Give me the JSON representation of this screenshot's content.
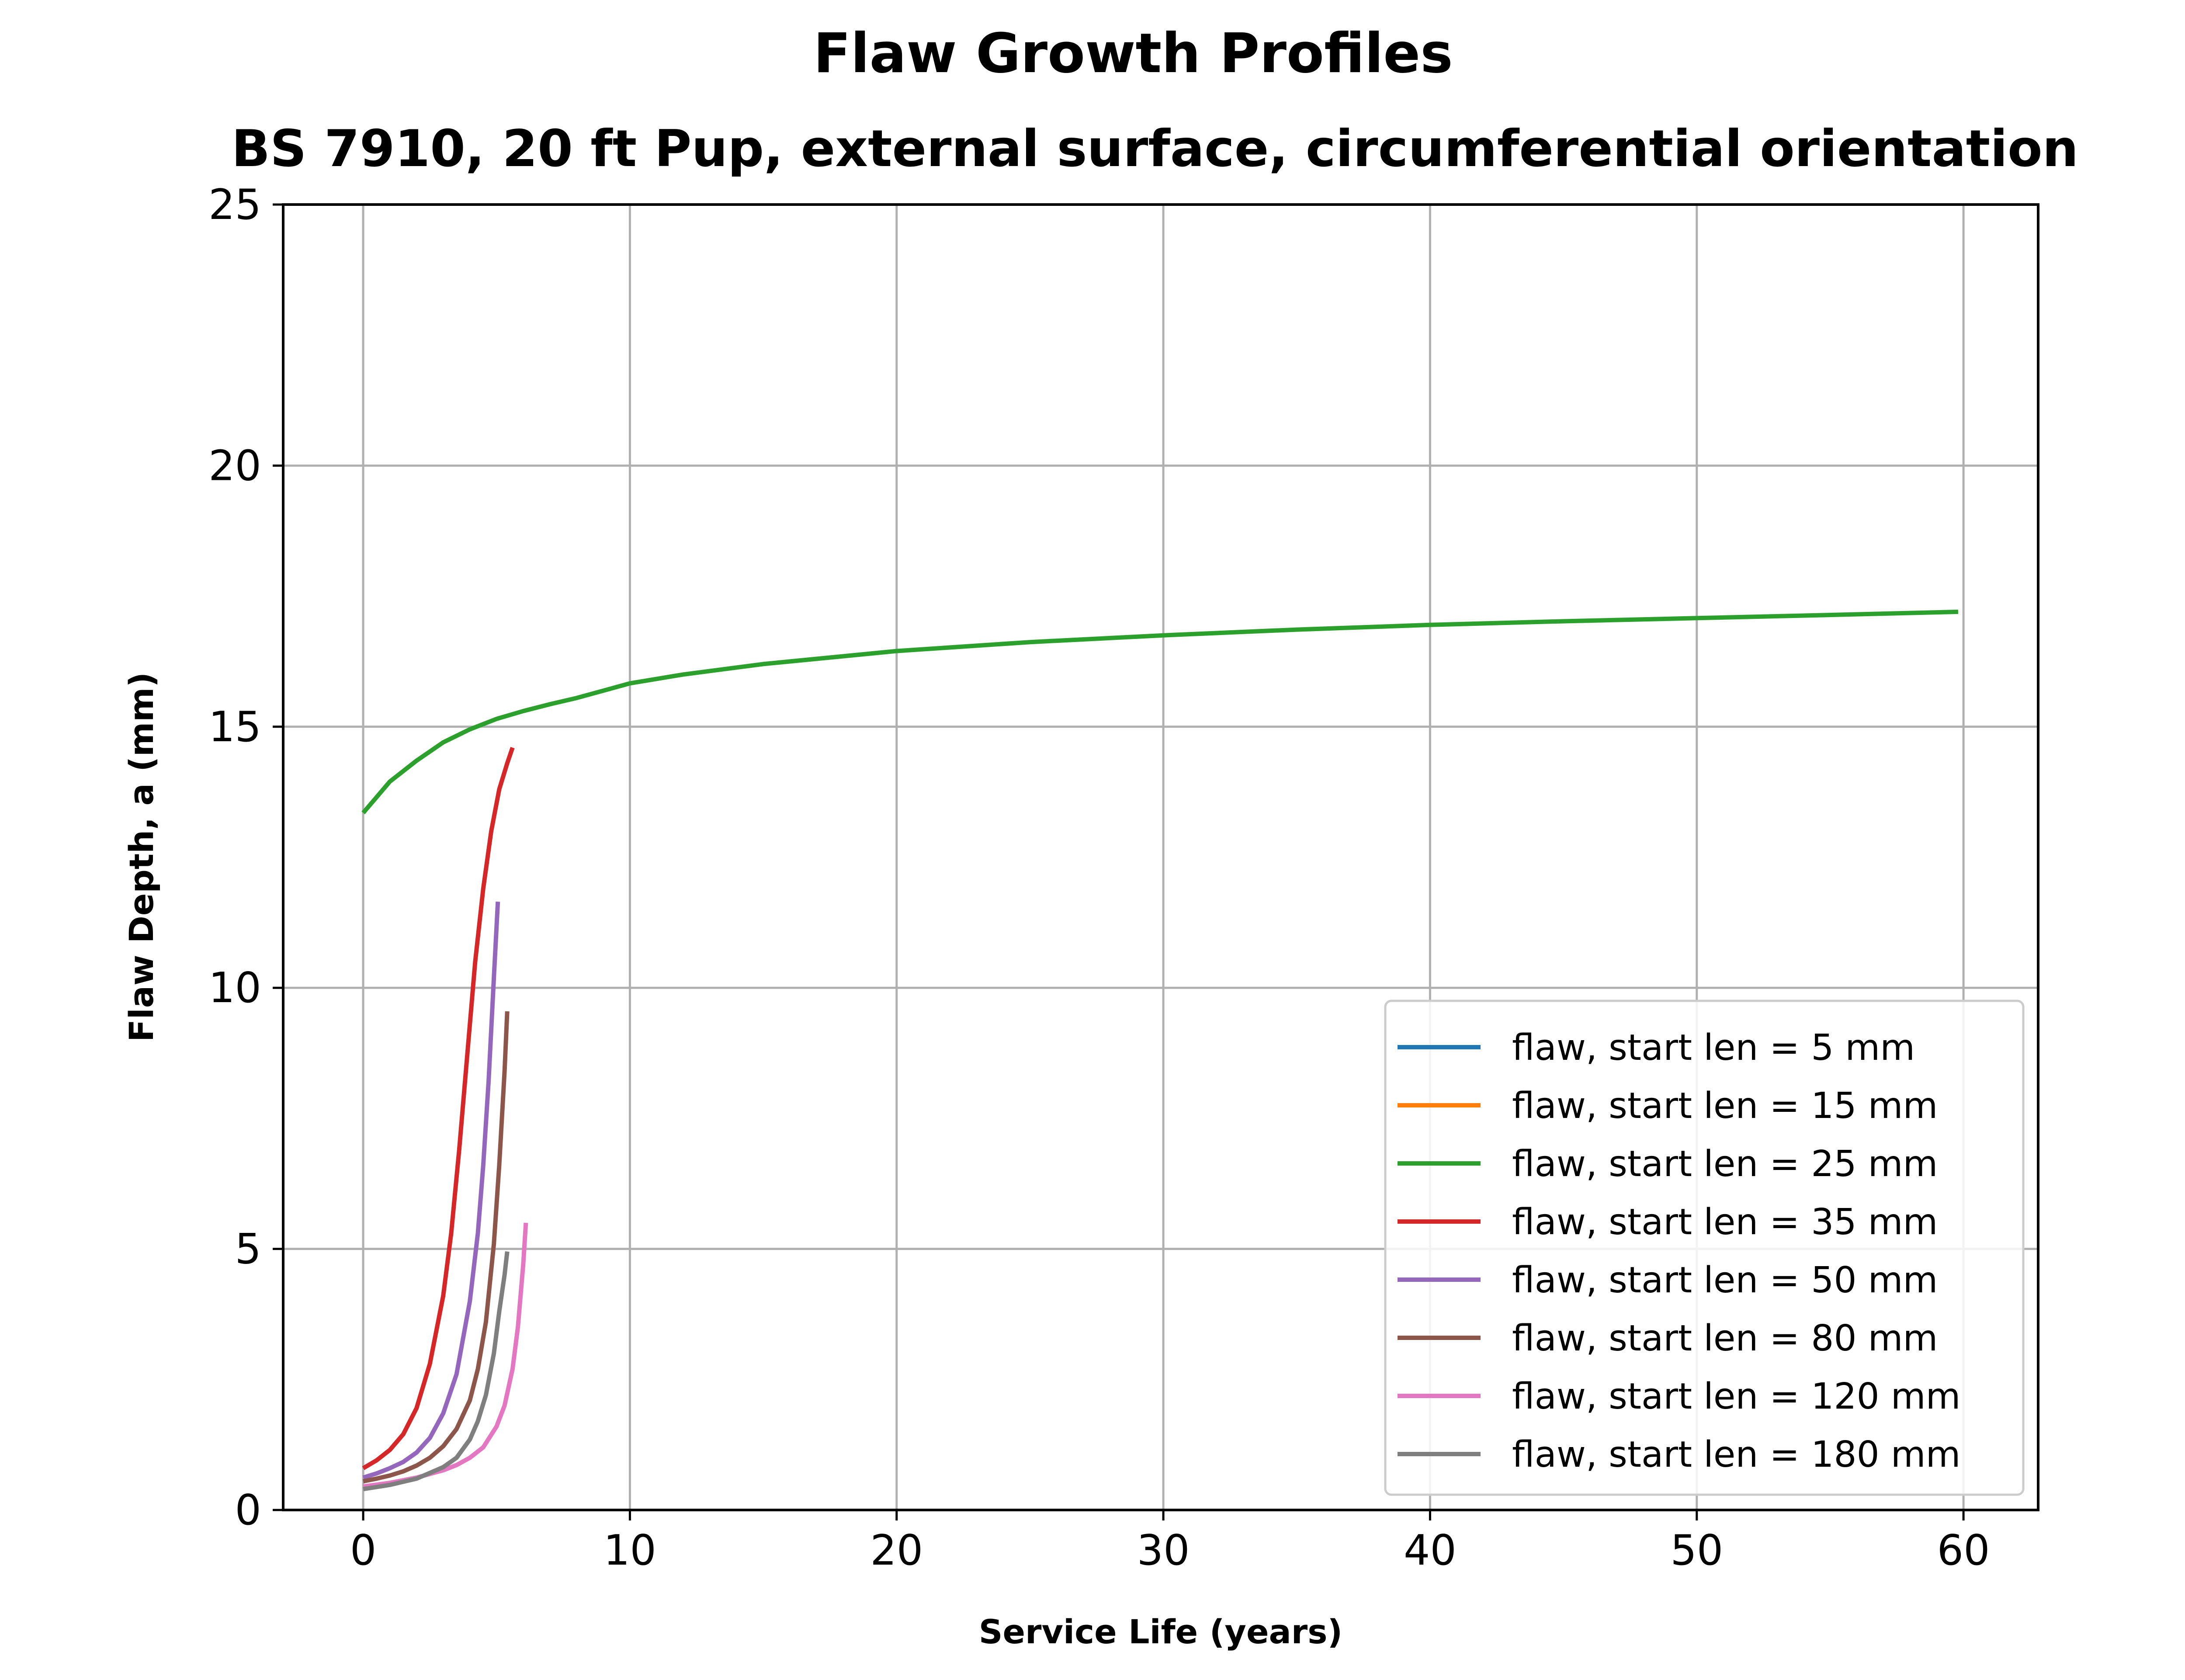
{
  "chart_data": {
    "type": "line",
    "title": "Flaw Growth Profiles",
    "subtitle": "BS 7910, 20 ft Pup, external surface, circumferential orientation",
    "xlabel": "Service Life (years)",
    "ylabel": "Flaw Depth, a (mm)",
    "xlim": [
      -3,
      62.8
    ],
    "ylim": [
      0,
      25
    ],
    "xticks": [
      0,
      10,
      20,
      30,
      40,
      50,
      60
    ],
    "yticks": [
      0,
      5,
      10,
      15,
      20,
      25
    ],
    "grid": true,
    "legend_position": "lower-right",
    "series": [
      {
        "name": "flaw, start len = 5 mm",
        "color": "#1f77b4",
        "x": [],
        "y": []
      },
      {
        "name": "flaw, start len = 15 mm",
        "color": "#ff7f0e",
        "x": [],
        "y": []
      },
      {
        "name": "flaw, start len = 25 mm",
        "color": "#2ca02c",
        "x": [
          0,
          0.5,
          1,
          2,
          3,
          4,
          5,
          6,
          7,
          8,
          10,
          12,
          15,
          20,
          25,
          30,
          35,
          40,
          45,
          50,
          55,
          59.8
        ],
        "y": [
          13.35,
          13.65,
          13.95,
          14.35,
          14.7,
          14.95,
          15.15,
          15.3,
          15.43,
          15.55,
          15.83,
          16.0,
          16.2,
          16.45,
          16.62,
          16.75,
          16.86,
          16.95,
          17.02,
          17.08,
          17.14,
          17.2
        ]
      },
      {
        "name": "flaw, start len = 35 mm",
        "color": "#d62728",
        "x": [
          0,
          0.5,
          1,
          1.5,
          2,
          2.5,
          3,
          3.3,
          3.6,
          3.9,
          4.2,
          4.5,
          4.8,
          5.1,
          5.4,
          5.6
        ],
        "y": [
          0.8,
          0.95,
          1.15,
          1.45,
          1.95,
          2.8,
          4.1,
          5.3,
          6.9,
          8.7,
          10.5,
          11.9,
          13.0,
          13.8,
          14.3,
          14.6
        ]
      },
      {
        "name": "flaw, start len = 50 mm",
        "color": "#9467bd",
        "x": [
          0,
          0.5,
          1,
          1.5,
          2,
          2.5,
          3,
          3.5,
          4,
          4.3,
          4.5,
          4.7,
          4.9,
          5.05
        ],
        "y": [
          0.62,
          0.7,
          0.8,
          0.92,
          1.1,
          1.38,
          1.85,
          2.6,
          4.0,
          5.3,
          6.6,
          8.2,
          10.2,
          11.65
        ]
      },
      {
        "name": "flaw, start len = 80 mm",
        "color": "#8c564b",
        "x": [
          0,
          0.5,
          1,
          1.5,
          2,
          2.5,
          3,
          3.5,
          4,
          4.3,
          4.6,
          4.9,
          5.1,
          5.3,
          5.4
        ],
        "y": [
          0.55,
          0.6,
          0.66,
          0.74,
          0.85,
          1.0,
          1.22,
          1.55,
          2.1,
          2.7,
          3.6,
          5.1,
          6.6,
          8.4,
          9.55
        ]
      },
      {
        "name": "flaw, start len = 120 mm",
        "color": "#e377c2",
        "x": [
          0,
          1,
          2,
          3,
          3.5,
          4,
          4.5,
          5,
          5.3,
          5.6,
          5.8,
          6.0,
          6.1
        ],
        "y": [
          0.45,
          0.52,
          0.62,
          0.76,
          0.86,
          1.0,
          1.2,
          1.6,
          2.0,
          2.7,
          3.5,
          4.7,
          5.5
        ]
      },
      {
        "name": "flaw, start len = 180 mm",
        "color": "#7f7f7f",
        "x": [
          0,
          1,
          2,
          3,
          3.5,
          4,
          4.3,
          4.6,
          4.9,
          5.1,
          5.3,
          5.4
        ],
        "y": [
          0.4,
          0.48,
          0.6,
          0.82,
          1.0,
          1.35,
          1.7,
          2.2,
          3.0,
          3.8,
          4.5,
          4.95
        ]
      }
    ]
  }
}
